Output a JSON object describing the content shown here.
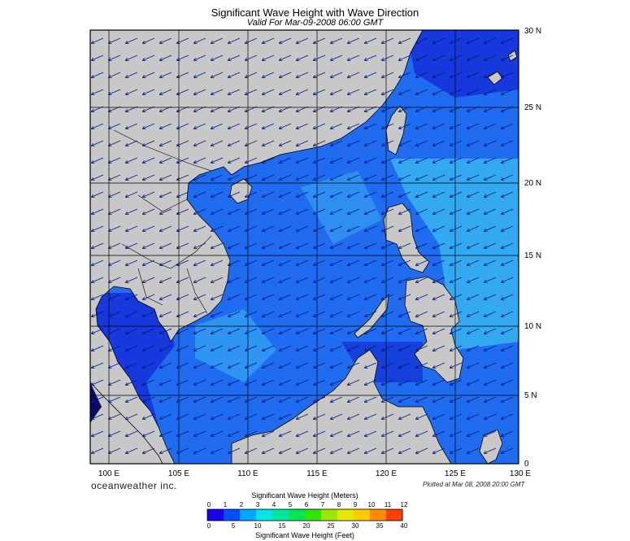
{
  "title": "Significant Wave Height with Wave Direction",
  "subtitle": "Valid For Mar-09-2008 06:00 GMT",
  "map": {
    "lon_labels": [
      "100 E",
      "105 E",
      "110 E",
      "115 E",
      "120 E",
      "125 E",
      "130 E"
    ],
    "lat_labels": [
      "30 N",
      "25 N",
      "20 N",
      "15 N",
      "10 N",
      "5 N",
      "0"
    ],
    "lon_range": [
      100,
      130
    ],
    "lat_range": [
      0,
      30
    ],
    "grid": true,
    "colors": {
      "land": "#c8c8c8",
      "sea_deep": "#0a1fd8",
      "sea_mid": "#1f6cf0",
      "sea_light": "#33a9f2",
      "border": "#000000",
      "arrows": "#001a80"
    },
    "wave_direction": "northeast, arrows pointing southwest"
  },
  "brand": "oceanweather inc.",
  "plotted": "Plotted at Mar 08, 2008 20:00 GMT",
  "colorbar": {
    "meters_title": "Significant Wave Height (Meters)",
    "feet_title": "Significant Wave Height (Feet)",
    "meters_ticks": [
      "0",
      "1",
      "2",
      "3",
      "4",
      "5",
      "6",
      "7",
      "8",
      "9",
      "10",
      "11",
      "12"
    ],
    "feet_ticks": [
      "0",
      "5",
      "10",
      "15",
      "20",
      "25",
      "30",
      "35",
      "40"
    ],
    "colors": [
      "#1a00e6",
      "#0050ff",
      "#00a8ff",
      "#00e6e6",
      "#00e6a0",
      "#00e650",
      "#30e600",
      "#9ae600",
      "#e6e600",
      "#ffc800",
      "#ff8c00",
      "#ff4000"
    ]
  }
}
